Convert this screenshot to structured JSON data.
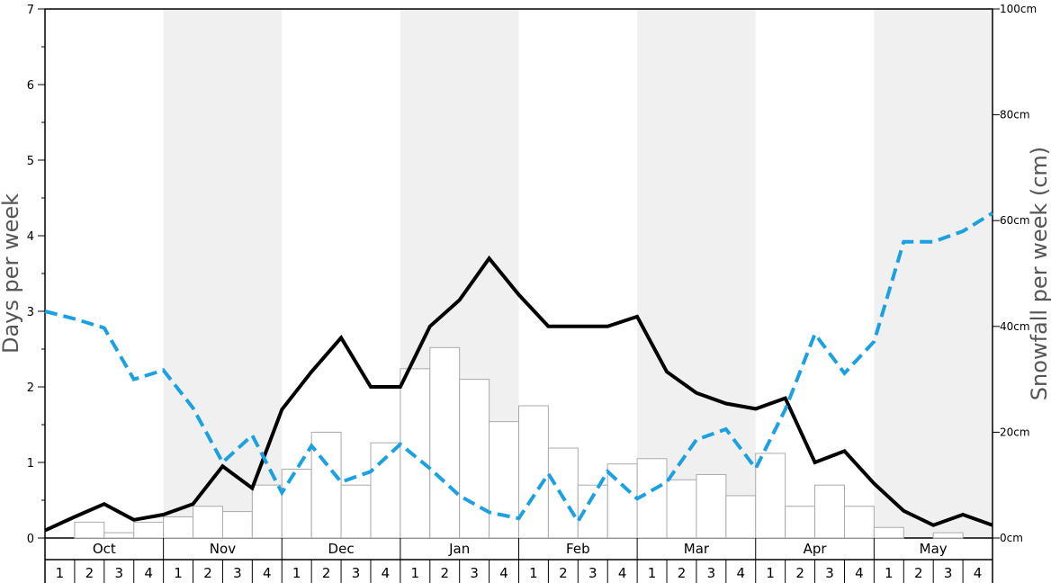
{
  "chart_data": {
    "type": "bar",
    "months": [
      "Oct",
      "Nov",
      "Dec",
      "Jan",
      "Feb",
      "Mar",
      "Apr",
      "May"
    ],
    "weeks": [
      "1",
      "2",
      "3",
      "4"
    ],
    "ylabel_left": "Days per week",
    "ylabel_right": "Snowfall per week (cm)",
    "ylim_left": [
      0,
      7
    ],
    "ylim_right": [
      0,
      100
    ],
    "left_ticks": [
      "0",
      "1",
      "2",
      "3",
      "4",
      "5",
      "6",
      "7"
    ],
    "right_ticks": [
      "0cm",
      "20cm",
      "40cm",
      "60cm",
      "80cm",
      "100cm"
    ],
    "shaded_months": [
      "Nov",
      "Jan",
      "Mar",
      "May"
    ],
    "series": [
      {
        "kind": "bar",
        "axis": "right",
        "color": "#aaaaaa",
        "values": [
          0,
          3,
          1,
          3,
          4,
          6,
          5,
          10,
          13,
          20,
          10,
          18,
          32,
          36,
          30,
          22,
          25,
          17,
          10,
          14,
          15,
          11,
          12,
          8,
          16,
          6,
          10,
          6,
          2,
          0,
          1,
          0
        ]
      },
      {
        "kind": "line",
        "axis": "left",
        "color": "#000000",
        "style": "solid",
        "values": [
          0.1,
          0.28,
          0.45,
          0.24,
          0.31,
          0.45,
          0.95,
          0.66,
          1.7,
          2.2,
          2.65,
          2.0,
          2.0,
          2.8,
          3.15,
          3.7,
          3.22,
          2.8,
          2.8,
          2.8,
          2.93,
          2.2,
          1.92,
          1.78,
          1.71,
          1.85,
          1.0,
          1.15,
          0.72,
          0.36,
          0.17,
          0.31,
          0.17
        ]
      },
      {
        "kind": "line",
        "axis": "left",
        "color": "#1ba1e2",
        "style": "dashed",
        "values": [
          3.0,
          2.9,
          2.78,
          2.1,
          2.22,
          1.72,
          1.0,
          1.36,
          0.6,
          1.22,
          0.74,
          0.88,
          1.24,
          0.92,
          0.56,
          0.34,
          0.26,
          0.85,
          0.22,
          0.88,
          0.52,
          0.74,
          1.3,
          1.44,
          0.92,
          1.7,
          2.7,
          2.18,
          2.6,
          3.92,
          3.92,
          4.06,
          4.3
        ]
      }
    ]
  }
}
